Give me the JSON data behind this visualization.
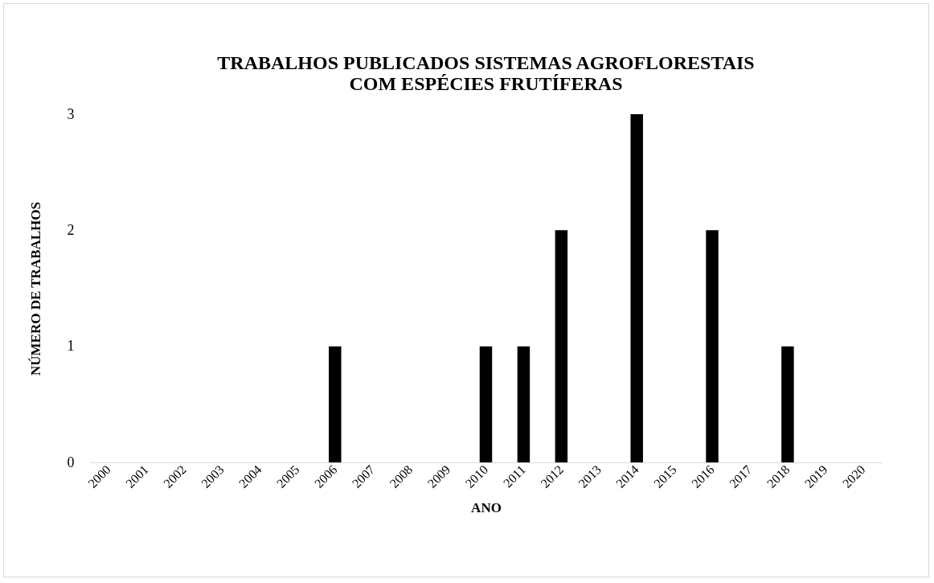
{
  "chart_data": {
    "type": "bar",
    "title": [
      "TRABALHOS PUBLICADOS SISTEMAS AGROFLORESTAIS",
      "COM ESPÉCIES FRUTÍFERAS"
    ],
    "xlabel": "ANO",
    "ylabel": "NÚMERO DE TRABALHOS",
    "categories": [
      "2000",
      "2001",
      "2002",
      "2003",
      "2004",
      "2005",
      "2006",
      "2007",
      "2008",
      "2009",
      "2010",
      "2011",
      "2012",
      "2013",
      "2014",
      "2015",
      "2016",
      "2017",
      "2018",
      "2019",
      "2020"
    ],
    "values": [
      0,
      0,
      0,
      0,
      0,
      0,
      1,
      0,
      0,
      0,
      1,
      1,
      2,
      0,
      3,
      0,
      2,
      0,
      1,
      0,
      0
    ],
    "color": "#000000",
    "ylim": [
      0,
      3
    ],
    "yticks": [
      0,
      1,
      2,
      3
    ],
    "grid": false
  }
}
